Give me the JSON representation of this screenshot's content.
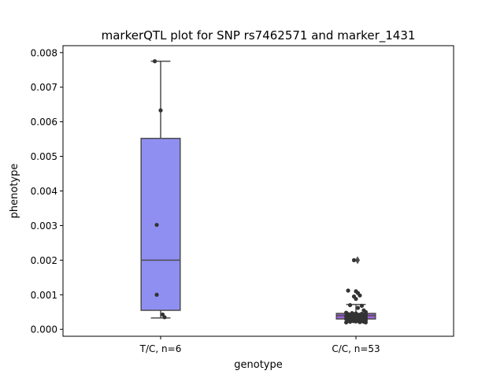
{
  "chart_data": {
    "type": "box",
    "title": "markerQTL plot for SNP rs7462571 and marker_1431",
    "xlabel": "genotype",
    "ylabel": "phenotype",
    "ylim": [
      -0.0002,
      0.0082
    ],
    "yticks": [
      0.0,
      0.001,
      0.002,
      0.003,
      0.004,
      0.005,
      0.006,
      0.007,
      0.008
    ],
    "ytick_labels": [
      "0.000",
      "0.001",
      "0.002",
      "0.003",
      "0.004",
      "0.005",
      "0.006",
      "0.007",
      "0.008"
    ],
    "categories": [
      "T/C, n=6",
      "C/C, n=53"
    ],
    "boxes": [
      {
        "name": "T/C, n=6",
        "color": "#8f8ff2",
        "q1": 0.00055,
        "median": 0.002,
        "q3": 0.00552,
        "whisker_low": 0.00033,
        "whisker_high": 0.00775,
        "outliers": []
      },
      {
        "name": "C/C, n=53",
        "color": "#9a5fd6",
        "q1": 0.0003,
        "median": 0.0004,
        "q3": 0.00046,
        "whisker_low": 0.0002,
        "whisker_high": 0.00072,
        "outliers": [
          0.002
        ]
      }
    ],
    "points": [
      [
        {
          "x": -0.03,
          "y": 0.00775
        },
        {
          "x": 0.0,
          "y": 0.00633
        },
        {
          "x": -0.02,
          "y": 0.00302
        },
        {
          "x": -0.02,
          "y": 0.001
        },
        {
          "x": 0.01,
          "y": 0.00043
        },
        {
          "x": 0.02,
          "y": 0.00035
        }
      ],
      [
        {
          "x": -0.01,
          "y": 0.002
        },
        {
          "x": -0.04,
          "y": 0.00112
        },
        {
          "x": 0.0,
          "y": 0.0011
        },
        {
          "x": 0.01,
          "y": 0.00105
        },
        {
          "x": -0.01,
          "y": 0.00095
        },
        {
          "x": 0.02,
          "y": 0.00098
        },
        {
          "x": 0.0,
          "y": 0.00088
        },
        {
          "x": 0.03,
          "y": 0.00068
        },
        {
          "x": -0.03,
          "y": 0.0007
        },
        {
          "x": 0.01,
          "y": 0.00062
        },
        {
          "x": 0.04,
          "y": 0.00055
        },
        {
          "x": 0.05,
          "y": 0.0005
        },
        {
          "x": -0.05,
          "y": 0.00048
        },
        {
          "x": -0.02,
          "y": 0.00047
        },
        {
          "x": 0.0,
          "y": 0.00046
        },
        {
          "x": 0.03,
          "y": 0.00045
        },
        {
          "x": 0.05,
          "y": 0.00044
        },
        {
          "x": -0.04,
          "y": 0.00044
        },
        {
          "x": -0.01,
          "y": 0.00043
        },
        {
          "x": 0.02,
          "y": 0.00042
        },
        {
          "x": 0.04,
          "y": 0.00041
        },
        {
          "x": -0.03,
          "y": 0.0004
        },
        {
          "x": 0.01,
          "y": 0.0004
        },
        {
          "x": 0.05,
          "y": 0.00039
        },
        {
          "x": -0.05,
          "y": 0.00038
        },
        {
          "x": 0.0,
          "y": 0.00038
        },
        {
          "x": 0.03,
          "y": 0.00037
        },
        {
          "x": -0.02,
          "y": 0.00036
        },
        {
          "x": 0.04,
          "y": 0.00035
        },
        {
          "x": -0.04,
          "y": 0.00035
        },
        {
          "x": 0.02,
          "y": 0.00034
        },
        {
          "x": 0.05,
          "y": 0.00033
        },
        {
          "x": -0.01,
          "y": 0.00033
        },
        {
          "x": 0.01,
          "y": 0.00032
        },
        {
          "x": -0.03,
          "y": 0.00031
        },
        {
          "x": 0.03,
          "y": 0.00031
        },
        {
          "x": 0.05,
          "y": 0.0003
        },
        {
          "x": -0.05,
          "y": 0.0003
        },
        {
          "x": 0.0,
          "y": 0.00029
        },
        {
          "x": 0.04,
          "y": 0.00028
        },
        {
          "x": -0.02,
          "y": 0.00028
        },
        {
          "x": 0.02,
          "y": 0.00027
        },
        {
          "x": 0.05,
          "y": 0.00026
        },
        {
          "x": -0.04,
          "y": 0.00026
        },
        {
          "x": 0.01,
          "y": 0.00025
        },
        {
          "x": 0.03,
          "y": 0.00024
        },
        {
          "x": -0.01,
          "y": 0.00024
        },
        {
          "x": 0.04,
          "y": 0.00022
        },
        {
          "x": -0.03,
          "y": 0.00022
        },
        {
          "x": -0.05,
          "y": 0.0002
        },
        {
          "x": 0.05,
          "y": 0.0002
        },
        {
          "x": 0.02,
          "y": 0.00021
        },
        {
          "x": 0.0,
          "y": 0.00023
        }
      ]
    ],
    "grid": false,
    "legend": "none"
  }
}
